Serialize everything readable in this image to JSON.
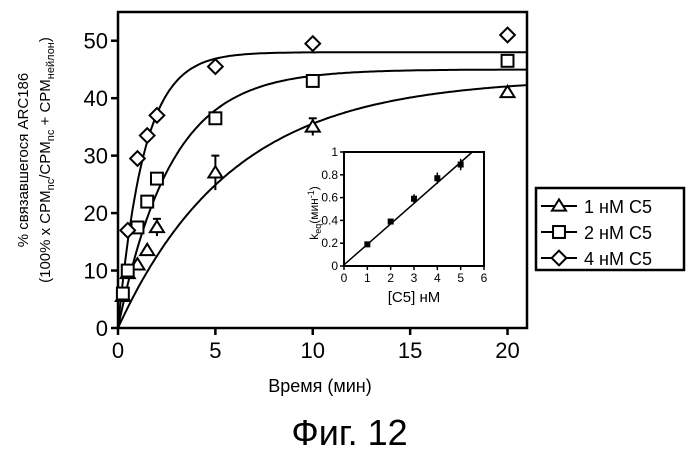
{
  "caption": "Фиг. 12",
  "chart_data": [
    {
      "type": "scatter",
      "subtype": "scatter with fitted exponential curves and error bars",
      "xlabel": "Время (мин)",
      "ylabel_line1": "% связавшегося ARC186",
      "ylabel_line2": {
        "prefix": "(100% x CPM",
        "sub1": "nc",
        "mid": "/CPM",
        "sub2": "nc",
        "plus": " + CPM",
        "sub3": "нейлон",
        "suffix": ")"
      },
      "xlim": [
        0,
        21
      ],
      "ylim": [
        0,
        55
      ],
      "xticks": [
        "0",
        "5",
        "10",
        "15",
        "20"
      ],
      "yticks": [
        "0",
        "10",
        "20",
        "30",
        "40",
        "50"
      ],
      "legend_position": "right",
      "series": [
        {
          "name": "1 нМ С5",
          "marker": "triangle",
          "x": [
            0.25,
            0.5,
            1,
            1.5,
            2,
            5,
            10,
            20
          ],
          "y": [
            5.5,
            9.5,
            11,
            13.5,
            17.5,
            27,
            35,
            41
          ],
          "err": [
            0,
            0,
            0,
            0,
            1.5,
            3,
            1.5,
            0
          ],
          "fit": {
            "ymax": 43.5,
            "k": 0.17
          }
        },
        {
          "name": "2 нМ С5",
          "marker": "square",
          "x": [
            0.25,
            0.5,
            1,
            1.5,
            2,
            5,
            10,
            20
          ],
          "y": [
            6,
            10,
            17.5,
            22,
            26,
            36.5,
            43,
            46.5
          ],
          "err": [
            0,
            0,
            0,
            0,
            0,
            0,
            0,
            1
          ],
          "fit": {
            "ymax": 45,
            "k": 0.37
          }
        },
        {
          "name": "4 нМ С5",
          "marker": "diamond",
          "x": [
            0.5,
            1,
            1.5,
            2,
            5,
            10,
            20
          ],
          "y": [
            17,
            29.5,
            33.5,
            37,
            45.5,
            49.5,
            51
          ],
          "err": [
            0,
            0,
            0,
            0,
            0,
            0,
            0
          ],
          "fit": {
            "ymax": 48,
            "k": 0.75
          }
        }
      ]
    },
    {
      "type": "scatter",
      "subtype": "inset with linear fit",
      "xlabel": "[C5] нМ",
      "ylabel": {
        "main": "k",
        "sub": "eq",
        "unit": "(мин",
        "sup": "-1",
        "close": ")"
      },
      "xlim": [
        0,
        6
      ],
      "ylim": [
        0,
        1
      ],
      "xticks": [
        "0",
        "1",
        "2",
        "3",
        "4",
        "5",
        "6"
      ],
      "yticks": [
        "0",
        "0.2",
        "0.4",
        "0.6",
        "0.8",
        "1"
      ],
      "x": [
        1,
        2,
        3,
        4,
        5
      ],
      "y": [
        0.19,
        0.39,
        0.59,
        0.77,
        0.89
      ],
      "err": [
        0.02,
        0.02,
        0.04,
        0.05,
        0.05
      ],
      "fit": {
        "slope": 0.18,
        "intercept": 0.01
      }
    }
  ]
}
